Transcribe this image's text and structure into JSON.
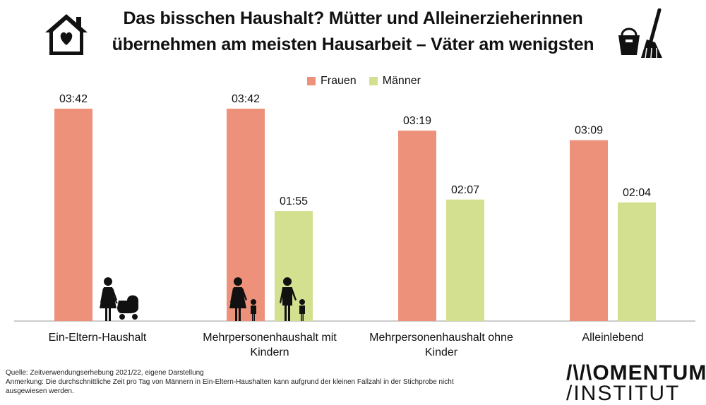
{
  "title_lines": [
    "Das bisschen Haushalt? Mütter und Alleinerzieherinnen",
    "übernehmen am meisten Hausarbeit – Väter am wenigsten"
  ],
  "legend": [
    {
      "label": "Frauen",
      "color": "#ee917a"
    },
    {
      "label": "Männer",
      "color": "#d3e08f"
    }
  ],
  "chart_data": {
    "type": "bar",
    "categories": [
      "Ein-Eltern-Haushalt",
      "Mehrpersonenhaushalt mit Kindern",
      "Mehrpersonenhaushalt ohne Kinder",
      "Alleinlebend"
    ],
    "category_lines": [
      [
        "Ein-Eltern-Haushalt"
      ],
      [
        "Mehrpersonenhaushalt mit",
        "Kindern"
      ],
      [
        "Mehrpersonenhaushalt ohne",
        "Kinder"
      ],
      [
        "Alleinlebend"
      ]
    ],
    "series": [
      {
        "name": "Frauen",
        "color": "#ee917a",
        "values": [
          222,
          222,
          199,
          189
        ],
        "labels": [
          "03:42",
          "03:42",
          "03:19",
          "03:09"
        ]
      },
      {
        "name": "Männer",
        "color": "#d3e08f",
        "values": [
          null,
          115,
          127,
          124
        ],
        "labels": [
          null,
          "01:55",
          "02:07",
          "02:04"
        ]
      }
    ],
    "value_unit": "minutes per day (shown as hh:mm)",
    "ylim": [
      0,
      222
    ],
    "grid": false,
    "legend_position": "top-center",
    "icons": [
      "mother-with-stroller-icon",
      "mother-with-child-icon",
      "father-with-child-icon"
    ]
  },
  "footer": {
    "source": "Quelle: Zeitverwendungserhebung 2021/22, eigene Darstellung",
    "note": "Anmerkung: Die durchschnittliche Zeit pro Tag von Männern in Ein-Eltern-Haushalten kann aufgrund der kleinen Fallzahl in der Stichprobe nicht ausgewiesen werden."
  },
  "logo": {
    "line1": "/\\/\\OMENTUM",
    "line2": "/INSTITUT"
  }
}
